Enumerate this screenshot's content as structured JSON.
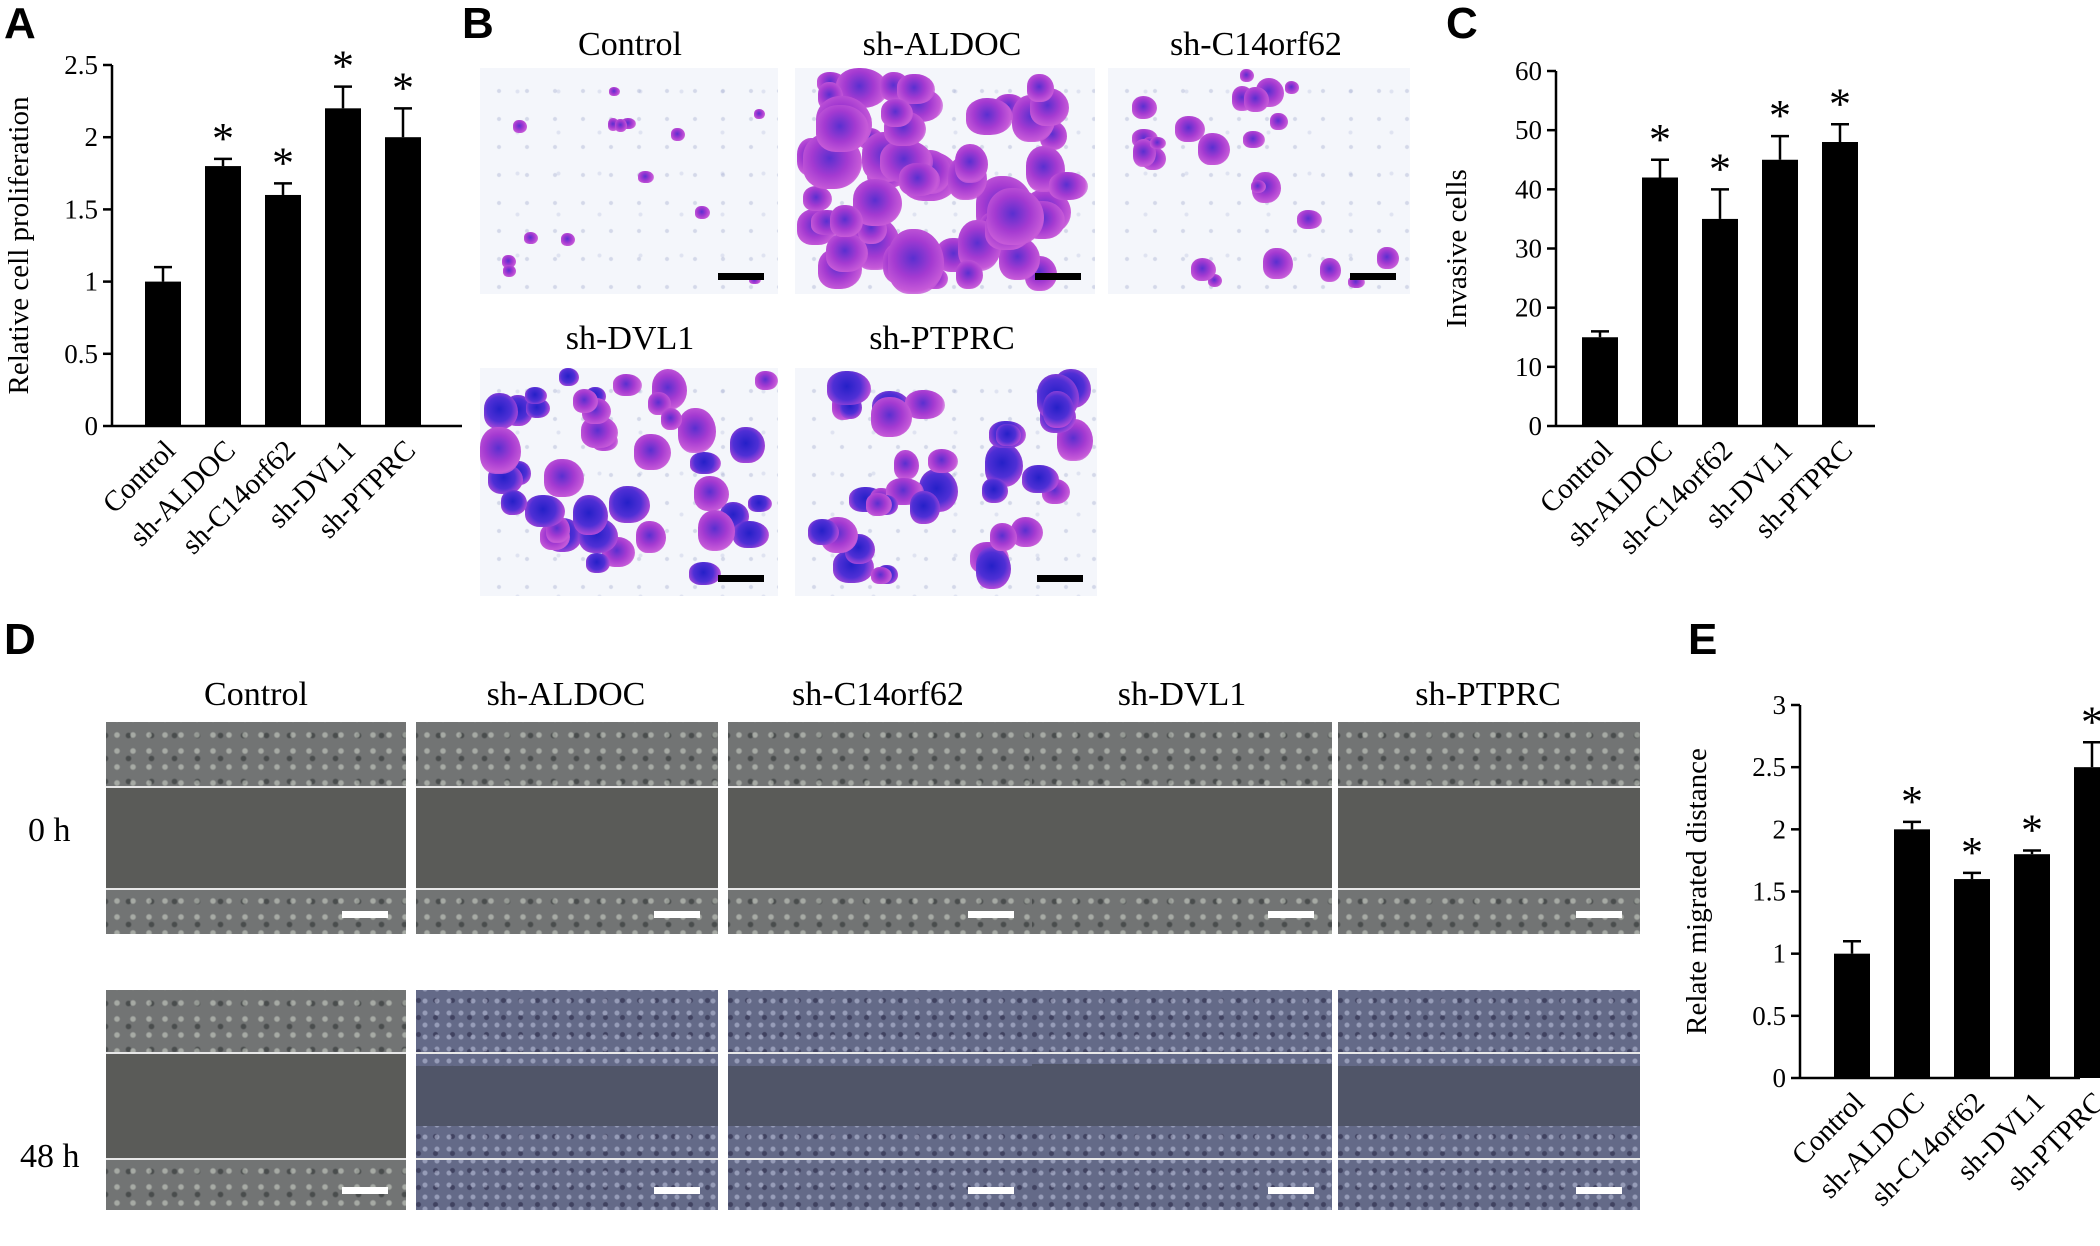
{
  "panels": {
    "a": "A",
    "b": "B",
    "c": "C",
    "d": "D",
    "e": "E"
  },
  "star_symbol": "*",
  "colors": {
    "bar": "#000000",
    "axis": "#000000"
  },
  "chart_data": [
    {
      "id": "A",
      "type": "bar",
      "title": "",
      "xlabel": "",
      "ylabel": "Relative cell proliferation",
      "categories": [
        "Control",
        "sh-ALDOC",
        "sh-C14orf62",
        "sh-DVL1",
        "sh-PTPRC"
      ],
      "values": [
        1.0,
        1.8,
        1.6,
        2.2,
        2.0
      ],
      "errors": [
        0.1,
        0.05,
        0.08,
        0.15,
        0.2
      ],
      "significant": [
        false,
        true,
        true,
        true,
        true
      ],
      "ylim": [
        0,
        2.5
      ],
      "yticks": [
        "0",
        "0.5",
        "1",
        "1.5",
        "2",
        "2.5"
      ],
      "grid": false
    },
    {
      "id": "C",
      "type": "bar",
      "title": "",
      "xlabel": "",
      "ylabel": "Invasive cells",
      "categories": [
        "Control",
        "sh-ALDOC",
        "sh-C14orf62",
        "sh-DVL1",
        "sh-PTPRC"
      ],
      "values": [
        15,
        42,
        35,
        45,
        48
      ],
      "errors": [
        1,
        3,
        5,
        4,
        3
      ],
      "significant": [
        false,
        true,
        true,
        true,
        true
      ],
      "ylim": [
        0,
        60
      ],
      "yticks": [
        "0",
        "10",
        "20",
        "30",
        "40",
        "50",
        "60"
      ],
      "grid": false
    },
    {
      "id": "E",
      "type": "bar",
      "title": "",
      "xlabel": "",
      "ylabel": "Relate migrated distance",
      "categories": [
        "Control",
        "sh-ALDOC",
        "sh-C14orf62",
        "sh-DVL1",
        "sh-PTPRC"
      ],
      "values": [
        1.0,
        2.0,
        1.6,
        1.8,
        2.5
      ],
      "errors": [
        0.1,
        0.06,
        0.05,
        0.03,
        0.2
      ],
      "significant": [
        false,
        true,
        true,
        true,
        true
      ],
      "ylim": [
        0,
        3
      ],
      "yticks": [
        "0",
        "0.5",
        "1",
        "1.5",
        "2",
        "2.5",
        "3"
      ],
      "grid": false
    }
  ],
  "invasion": {
    "labels": [
      "Control",
      "sh-ALDOC",
      "sh-C14orf62",
      "sh-DVL1",
      "sh-PTPRC"
    ]
  },
  "wound": {
    "labels": [
      "Control",
      "sh-ALDOC",
      "sh-C14orf62",
      "sh-DVL1",
      "sh-PTPRC"
    ],
    "rows": [
      "0 h",
      "48 h"
    ]
  }
}
